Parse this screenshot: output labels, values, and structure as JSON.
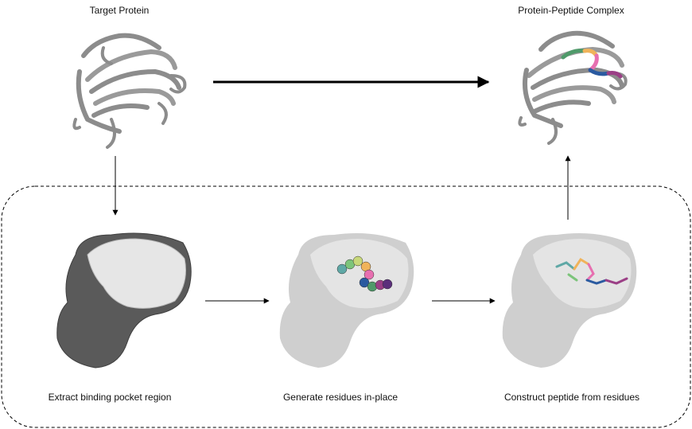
{
  "labels": {
    "target_protein": "Target Protein",
    "complex": "Protein-Peptide Complex",
    "step1": "Extract binding pocket region",
    "step2": "Generate residues in-place",
    "step3": "Construct peptide from residues"
  },
  "colors": {
    "ribbon": "#8c8c8c",
    "ribbon_edge": "#6e6e6e",
    "pocket_light": "#e6e6e6",
    "pocket_dark": "#555555",
    "ghost": "#c4c4c4",
    "arrow": "#000000",
    "residue_palette": [
      "#5fa8a6",
      "#7cc47a",
      "#c7d77a",
      "#f0b35a",
      "#e76fb0",
      "#2a5aa0",
      "#4f9a6a",
      "#9b3f86",
      "#5b2f7a"
    ]
  },
  "icons": {
    "target_structure": "protein-ribbon-icon",
    "complex_structure": "protein-peptide-complex-icon",
    "pocket_structure": "binding-pocket-spacefill-icon",
    "residues_structure": "generated-residues-icon",
    "peptide_structure": "constructed-peptide-icon"
  }
}
